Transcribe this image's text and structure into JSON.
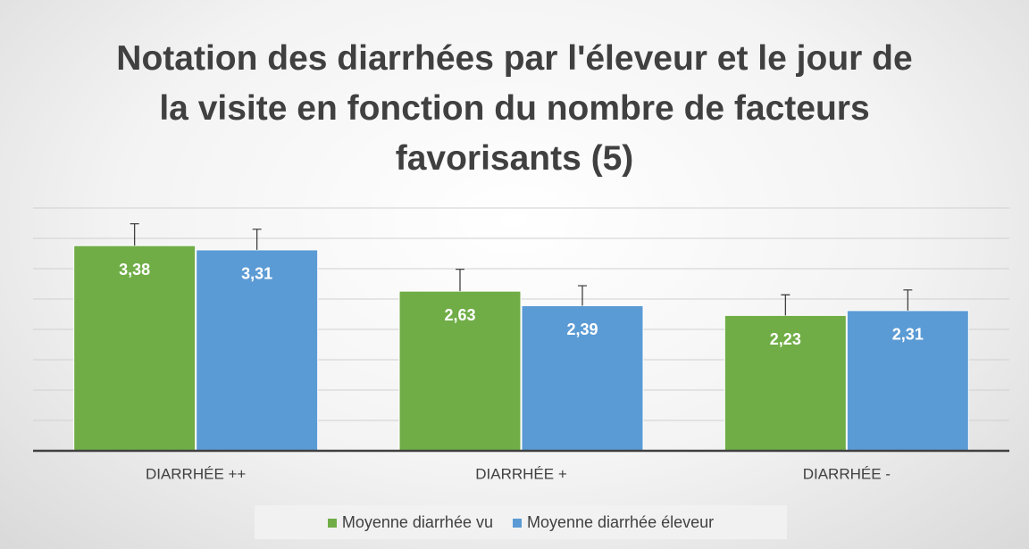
{
  "chart_data": {
    "type": "bar",
    "title": "Notation des diarrhées par l'éleveur et le jour de la visite en fonction du nombre de facteurs favorisants (5)",
    "categories": [
      "DIARRHÉE ++",
      "DIARRHÉE +",
      "DIARRHÉE -"
    ],
    "series": [
      {
        "name": "Moyenne diarrhée vu",
        "color": "#70ad47",
        "values": [
          3.38,
          2.63,
          2.23
        ],
        "value_labels": [
          "3,38",
          "2,63",
          "2,23"
        ],
        "errors": [
          0.36,
          0.36,
          0.34
        ]
      },
      {
        "name": "Moyenne diarrhée éleveur",
        "color": "#5b9bd5",
        "values": [
          3.31,
          2.39,
          2.31
        ],
        "value_labels": [
          "3,31",
          "2,39",
          "2,31"
        ],
        "errors": [
          0.34,
          0.33,
          0.34
        ]
      }
    ],
    "ylim": [
      0,
      4
    ],
    "yticks": [
      0,
      0.5,
      1,
      1.5,
      2,
      2.5,
      3,
      3.5,
      4
    ],
    "grid": true,
    "legend": "bottom"
  }
}
